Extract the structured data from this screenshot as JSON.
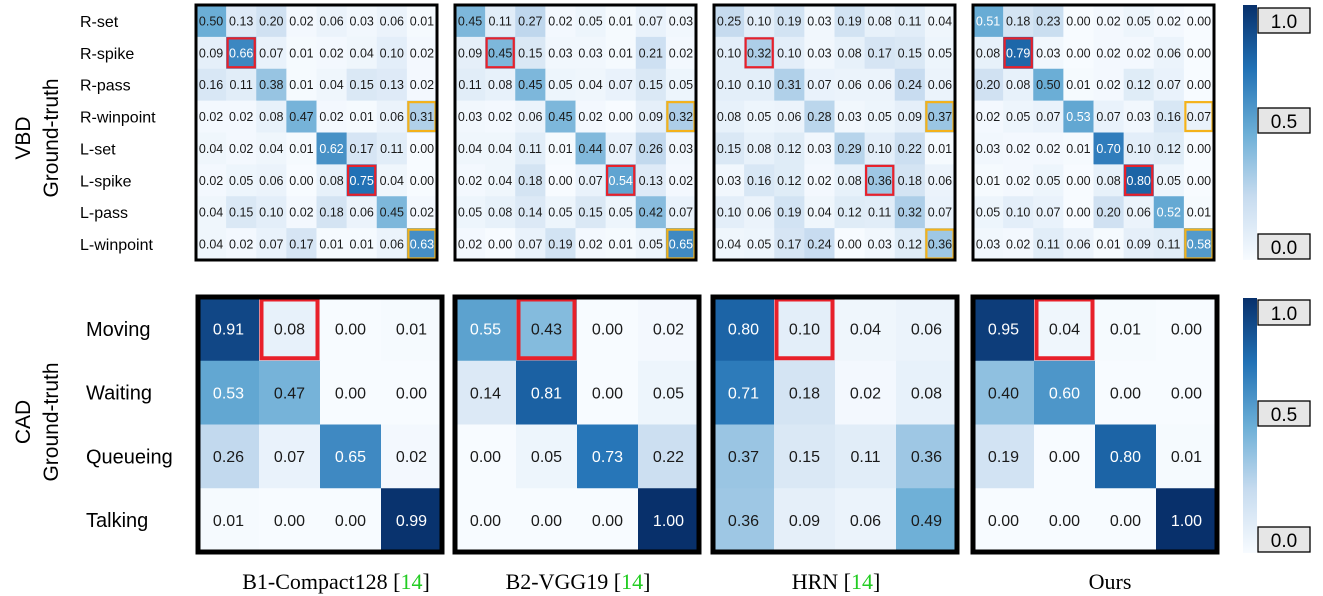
{
  "figure": {
    "captions": [
      {
        "text": "B1-Compact128 ",
        "cite": "14"
      },
      {
        "text": "B2-VGG19 ",
        "cite": "14"
      },
      {
        "text": "HRN ",
        "cite": "14"
      },
      {
        "text": "Ours",
        "cite": ""
      }
    ],
    "colorbar": {
      "max_label": "1.0",
      "mid_label": "0.5",
      "min_label": "0.0",
      "colors": [
        "#f7fbff",
        "#c6dbef",
        "#6baed6",
        "#2171b5",
        "#08306b"
      ]
    },
    "highlight_colors": {
      "red": "#e8202a",
      "orange": "#f4b21b"
    }
  },
  "chart_data": [
    {
      "type": "heatmap",
      "dataset": "VBD",
      "ylabel": "Ground-truth",
      "classes": [
        "R-set",
        "R-spike",
        "R-pass",
        "R-winpoint",
        "L-set",
        "L-spike",
        "L-pass",
        "L-winpoint"
      ],
      "highlights": [
        {
          "row": 1,
          "col": 1,
          "color": "red"
        },
        {
          "row": 5,
          "col": 5,
          "color": "red"
        },
        {
          "row": 3,
          "col": 7,
          "color": "orange"
        },
        {
          "row": 7,
          "col": 7,
          "color": "orange"
        }
      ],
      "matrices": [
        {
          "model": "B1-Compact128",
          "values": [
            [
              0.5,
              0.13,
              0.2,
              0.02,
              0.06,
              0.03,
              0.06,
              0.01
            ],
            [
              0.09,
              0.66,
              0.07,
              0.01,
              0.02,
              0.04,
              0.1,
              0.02
            ],
            [
              0.16,
              0.11,
              0.38,
              0.01,
              0.04,
              0.15,
              0.13,
              0.02
            ],
            [
              0.02,
              0.02,
              0.08,
              0.47,
              0.02,
              0.01,
              0.06,
              0.31
            ],
            [
              0.04,
              0.02,
              0.04,
              0.01,
              0.62,
              0.17,
              0.11,
              0.0
            ],
            [
              0.02,
              0.05,
              0.06,
              0.0,
              0.08,
              0.75,
              0.04,
              0.0
            ],
            [
              0.04,
              0.15,
              0.1,
              0.02,
              0.18,
              0.06,
              0.45,
              0.02
            ],
            [
              0.04,
              0.02,
              0.07,
              0.17,
              0.01,
              0.01,
              0.06,
              0.63
            ]
          ]
        },
        {
          "model": "B2-VGG19",
          "values": [
            [
              0.45,
              0.11,
              0.27,
              0.02,
              0.05,
              0.01,
              0.07,
              0.03
            ],
            [
              0.09,
              0.45,
              0.15,
              0.03,
              0.03,
              0.01,
              0.21,
              0.02
            ],
            [
              0.11,
              0.08,
              0.45,
              0.05,
              0.04,
              0.07,
              0.15,
              0.05
            ],
            [
              0.03,
              0.02,
              0.06,
              0.45,
              0.02,
              0.0,
              0.09,
              0.32
            ],
            [
              0.04,
              0.04,
              0.11,
              0.01,
              0.44,
              0.07,
              0.26,
              0.03
            ],
            [
              0.02,
              0.04,
              0.18,
              0.0,
              0.07,
              0.54,
              0.13,
              0.02
            ],
            [
              0.05,
              0.08,
              0.14,
              0.05,
              0.15,
              0.05,
              0.42,
              0.07
            ],
            [
              0.02,
              0.0,
              0.07,
              0.19,
              0.02,
              0.01,
              0.05,
              0.65
            ]
          ]
        },
        {
          "model": "HRN",
          "values": [
            [
              0.25,
              0.1,
              0.19,
              0.03,
              0.19,
              0.08,
              0.11,
              0.04
            ],
            [
              0.1,
              0.32,
              0.1,
              0.03,
              0.08,
              0.17,
              0.15,
              0.05
            ],
            [
              0.1,
              0.1,
              0.31,
              0.07,
              0.06,
              0.06,
              0.24,
              0.06
            ],
            [
              0.08,
              0.05,
              0.06,
              0.28,
              0.03,
              0.05,
              0.09,
              0.37
            ],
            [
              0.15,
              0.08,
              0.12,
              0.03,
              0.29,
              0.1,
              0.22,
              0.01
            ],
            [
              0.03,
              0.16,
              0.12,
              0.02,
              0.08,
              0.36,
              0.18,
              0.06
            ],
            [
              0.1,
              0.06,
              0.19,
              0.04,
              0.12,
              0.11,
              0.32,
              0.07
            ],
            [
              0.04,
              0.05,
              0.17,
              0.24,
              0.0,
              0.03,
              0.12,
              0.36
            ]
          ]
        },
        {
          "model": "Ours",
          "values": [
            [
              0.51,
              0.18,
              0.23,
              0.0,
              0.02,
              0.05,
              0.02,
              0.0
            ],
            [
              0.08,
              0.79,
              0.03,
              0.0,
              0.02,
              0.02,
              0.06,
              0.0
            ],
            [
              0.2,
              0.08,
              0.5,
              0.01,
              0.02,
              0.12,
              0.07,
              0.0
            ],
            [
              0.02,
              0.05,
              0.07,
              0.53,
              0.07,
              0.03,
              0.16,
              0.07
            ],
            [
              0.03,
              0.02,
              0.02,
              0.01,
              0.7,
              0.1,
              0.12,
              0.0
            ],
            [
              0.01,
              0.02,
              0.05,
              0.0,
              0.08,
              0.8,
              0.05,
              0.0
            ],
            [
              0.05,
              0.1,
              0.07,
              0.0,
              0.2,
              0.06,
              0.52,
              0.01
            ],
            [
              0.03,
              0.02,
              0.11,
              0.06,
              0.01,
              0.09,
              0.11,
              0.58
            ]
          ]
        }
      ]
    },
    {
      "type": "heatmap",
      "dataset": "CAD",
      "ylabel": "Ground-truth",
      "classes": [
        "Moving",
        "Waiting",
        "Queueing",
        "Talking"
      ],
      "highlights": [
        {
          "row": 0,
          "col": 1,
          "color": "red"
        }
      ],
      "matrices": [
        {
          "model": "B1-Compact128",
          "values": [
            [
              0.91,
              0.08,
              0.0,
              0.01
            ],
            [
              0.53,
              0.47,
              0.0,
              0.0
            ],
            [
              0.26,
              0.07,
              0.65,
              0.02
            ],
            [
              0.01,
              0.0,
              0.0,
              0.99
            ]
          ]
        },
        {
          "model": "B2-VGG19",
          "values": [
            [
              0.55,
              0.43,
              0.0,
              0.02
            ],
            [
              0.14,
              0.81,
              0.0,
              0.05
            ],
            [
              0.0,
              0.05,
              0.73,
              0.22
            ],
            [
              0.0,
              0.0,
              0.0,
              1.0
            ]
          ]
        },
        {
          "model": "HRN",
          "values": [
            [
              0.8,
              0.1,
              0.04,
              0.06
            ],
            [
              0.71,
              0.18,
              0.02,
              0.08
            ],
            [
              0.37,
              0.15,
              0.11,
              0.36
            ],
            [
              0.36,
              0.09,
              0.06,
              0.49
            ]
          ]
        },
        {
          "model": "Ours",
          "values": [
            [
              0.95,
              0.04,
              0.01,
              0.0
            ],
            [
              0.4,
              0.6,
              0.0,
              0.0
            ],
            [
              0.19,
              0.0,
              0.8,
              0.01
            ],
            [
              0.0,
              0.0,
              0.0,
              1.0
            ]
          ]
        }
      ]
    }
  ]
}
